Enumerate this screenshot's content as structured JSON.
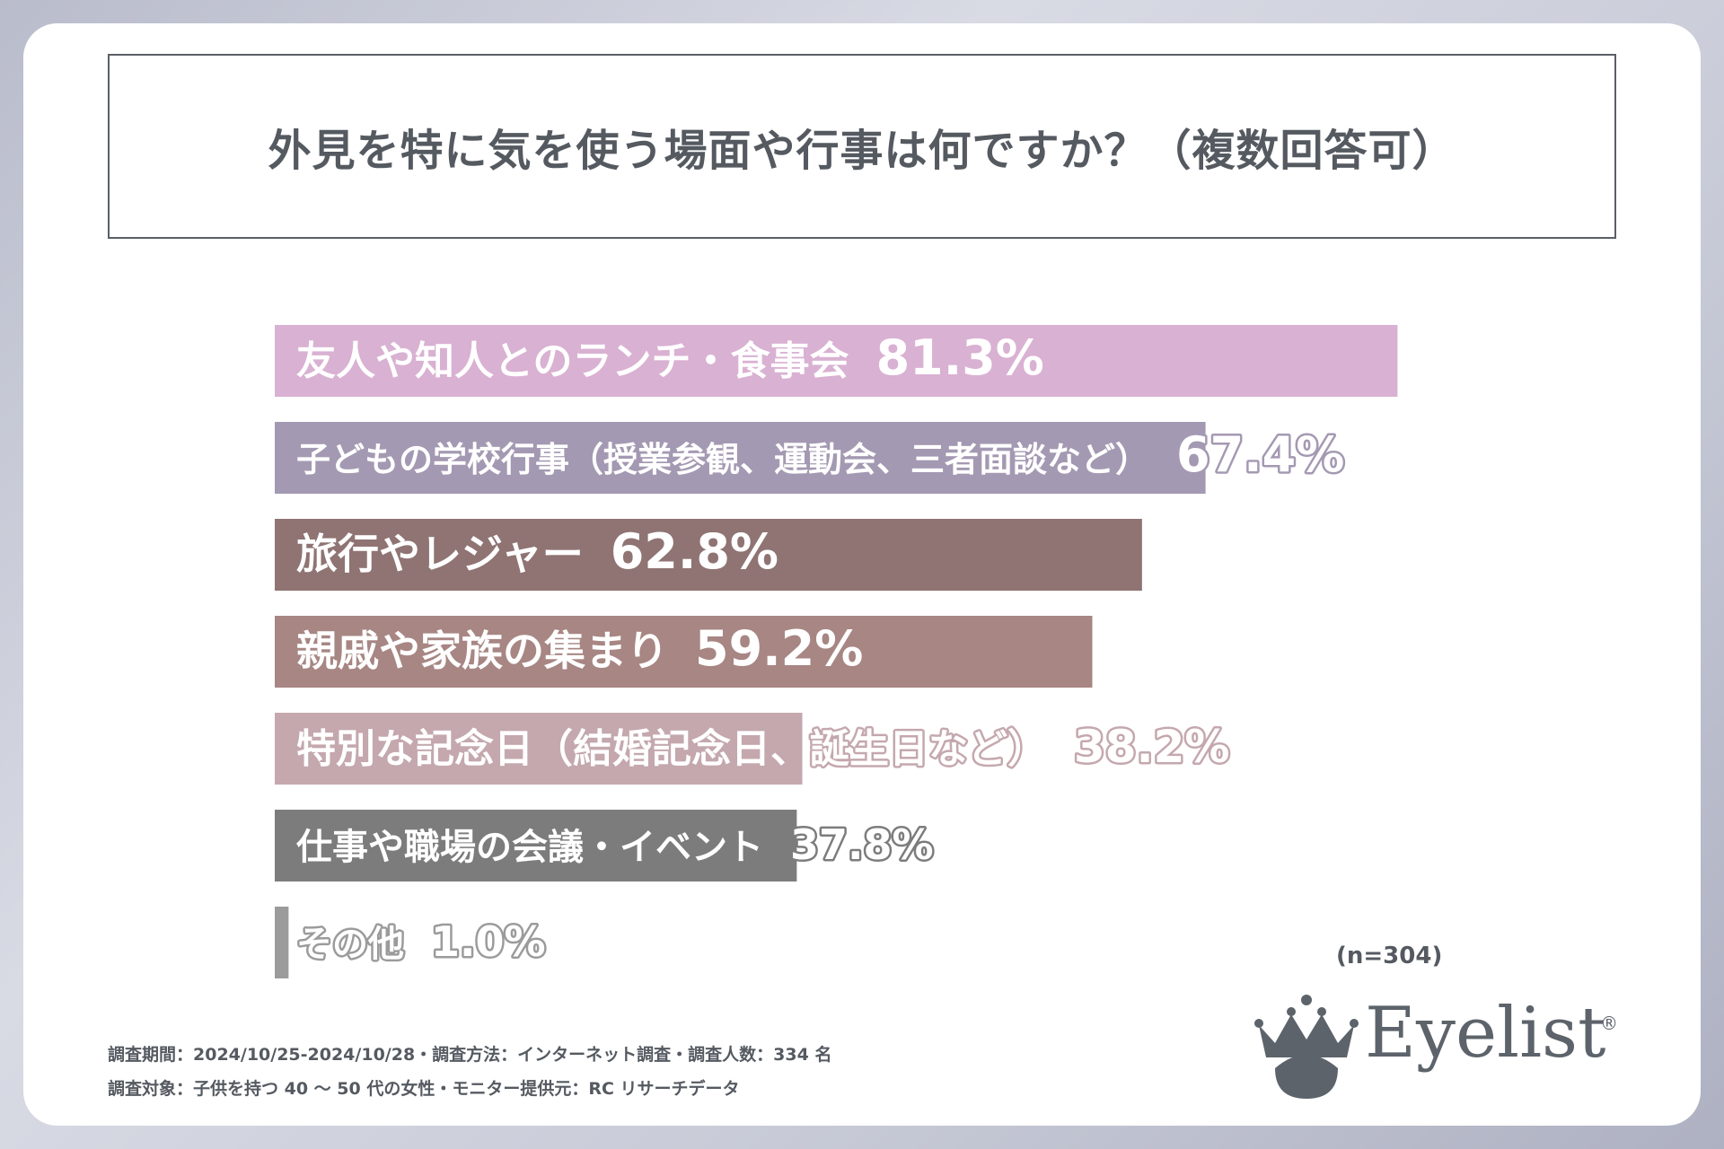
{
  "title": "外見を特に気を使う場面や行事は何ですか？（複数回答可）",
  "sample_size": "(n=304)",
  "footer": {
    "line1": "調査期間：2024/10/25-2024/10/28・調査方法：インターネット調査・調査人数：334 名",
    "line2": "調査対象：子供を持つ 40 ～ 50 代の女性・モニター提供元：RC リサーチデータ"
  },
  "brand": {
    "name": "Eyelist",
    "mark": "®"
  },
  "chart_data": {
    "type": "bar",
    "orientation": "horizontal",
    "title": "外見を特に気を使う場面や行事は何ですか？（複数回答可）",
    "categories": [
      "友人や知人とのランチ・食事会",
      "子どもの学校行事（授業参観、運動会、三者面談など）",
      "旅行やレジャー",
      "親戚や家族の集まり",
      "特別な記念日（結婚記念日、誕生日など）",
      "仕事や職場の会議・イベント",
      "その他"
    ],
    "values": [
      81.3,
      67.4,
      62.8,
      59.2,
      38.2,
      37.8,
      1.0
    ],
    "value_labels": [
      "81.3%",
      "67.4%",
      "62.8%",
      "59.2%",
      "38.2%",
      "37.8%",
      "1.0%"
    ],
    "colors": [
      "#d9b1d2",
      "#a499b2",
      "#8f7473",
      "#a78683",
      "#c4a8ae",
      "#7c7c7c",
      "#9b9b9b"
    ],
    "xlim": [
      0,
      100
    ],
    "legend": "none",
    "grid": false
  }
}
